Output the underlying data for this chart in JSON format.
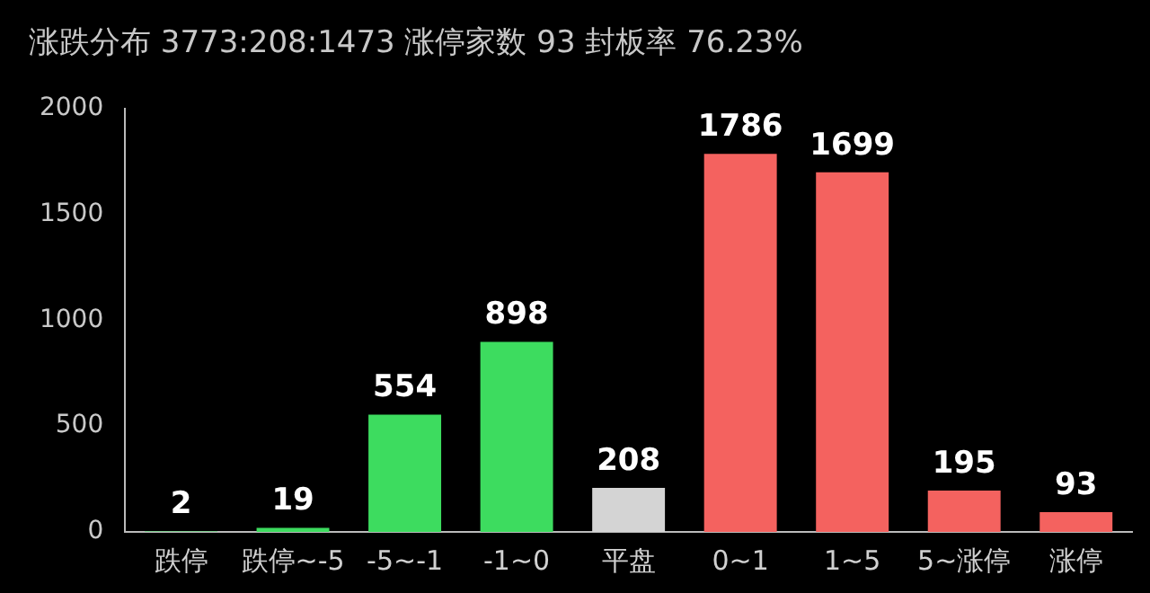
{
  "chart_data": {
    "type": "bar",
    "title": "涨跌分布 3773:208:1473 涨停家数 93 封板率 76.23%",
    "categories": [
      "跌停",
      "跌停~-5",
      "-5~-1",
      "-1~0",
      "平盘",
      "0~1",
      "1~5",
      "5~涨停",
      "涨停"
    ],
    "values": [
      2,
      19,
      554,
      898,
      208,
      1786,
      1699,
      195,
      93
    ],
    "colors": [
      "#3ddc5f",
      "#3ddc5f",
      "#3ddc5f",
      "#3ddc5f",
      "#d4d4d4",
      "#f4625f",
      "#f4625f",
      "#f4625f",
      "#f4625f"
    ],
    "ylim": [
      0,
      2000
    ],
    "yticks": [
      0,
      500,
      1000,
      1500,
      2000
    ],
    "grid": false,
    "data_labels": true
  }
}
